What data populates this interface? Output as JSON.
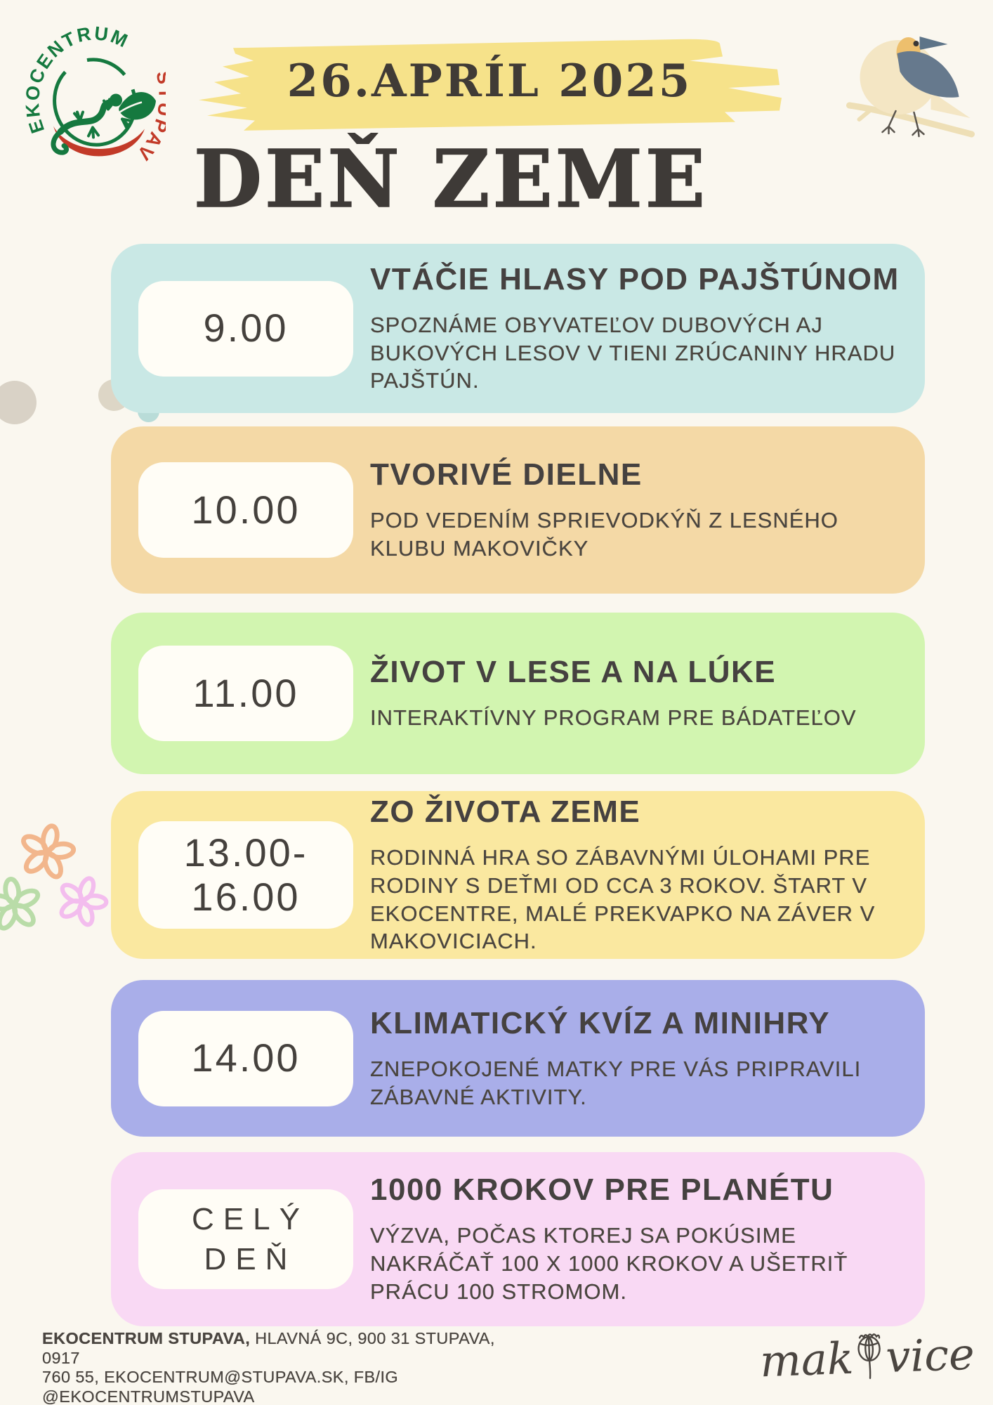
{
  "header": {
    "date_banner": "26.APRÍL 2025",
    "title": "DEŇ ZEME",
    "logo": {
      "arc_top": "EKOCENTRUM",
      "arc_side": "STUPAVA"
    }
  },
  "schedule": [
    {
      "time_lines": [
        "9.00"
      ],
      "heading": "VTÁČIE HLASY POD PAJŠTÚNOM",
      "desc_lines": [
        "SPOZNÁME OBYVATEĽOV DUBOVÝCH AJ",
        "BUKOVÝCH LESOV V TIENI ZRÚCANINY HRADU",
        "PAJŠTÚN."
      ],
      "color": "#c9e8e5"
    },
    {
      "time_lines": [
        "10.00"
      ],
      "heading": "TVORIVÉ DIELNE",
      "desc_lines": [
        "POD VEDENÍM SPRIEVODKÝŇ Z LESNÉHO",
        "KLUBU MAKOVIČKY"
      ],
      "color": "#f4d9a6"
    },
    {
      "time_lines": [
        "11.00"
      ],
      "heading": "ŽIVOT V LESE A NA LÚKE",
      "desc_lines": [
        "INTERAKTÍVNY PROGRAM PRE BÁDATEĽOV"
      ],
      "color": "#d2f5b0"
    },
    {
      "time_lines": [
        "13.00-",
        "16.00"
      ],
      "heading": "ZO ŽIVOTA ZEME",
      "desc_lines": [
        "RODINNÁ HRA SO ZÁBAVNÝMI ÚLOHAMI PRE",
        "RODINY S DEŤMI OD CCA 3 ROKOV. ŠTART V",
        "EKOCENTRE, MALÉ PREKVAPKO NA ZÁVER V",
        "MAKOVICIACH."
      ],
      "color": "#fae8a0"
    },
    {
      "time_lines": [
        "14.00"
      ],
      "heading": "KLIMATICKÝ KVÍZ A MINIHRY",
      "desc_lines": [
        "ZNEPOKOJENÉ MATKY PRE VÁS PRIPRAVILI",
        "ZÁBAVNÉ AKTIVITY."
      ],
      "color": "#a9aee9"
    },
    {
      "time_lines": [
        "CELÝ",
        "DEŇ"
      ],
      "heading": "1000 KROKOV PRE PLANÉTU",
      "desc_lines": [
        "VÝZVA, POČAS KTOREJ SA POKÚSIME",
        "NAKRÁČAŤ 100 X 1000 KROKOV A UŠETRIŤ",
        "PRÁCU 100 STROMOM."
      ],
      "color": "#f9d9f4"
    }
  ],
  "footer": {
    "org_bold": "EKOCENTRUM STUPAVA,",
    "line1_rest": " HLAVNÁ 9C, 900 31 STUPAVA, 0917",
    "line2": "760 55, EKOCENTRUM@STUPAVA.SK, FB/IG",
    "line3": "@EKOCENTRUMSTUPAVA",
    "brand_pre": "mak",
    "brand_post": "vice"
  },
  "theme": {
    "background": "#faf7ef",
    "banner_yellow": "#f6e28a",
    "title_dark": "#3e3a37",
    "body_text": "#4a453f",
    "time_box": "#fffdf6",
    "logo_green": "#15793f",
    "logo_red": "#c23a28",
    "bird_body": "#f4e6c4",
    "bird_wing": "#66798d",
    "card_colors": [
      "#c9e8e5",
      "#f4d9a6",
      "#d2f5b0",
      "#fae8a0",
      "#a9aee9",
      "#f9d9f4"
    ]
  }
}
